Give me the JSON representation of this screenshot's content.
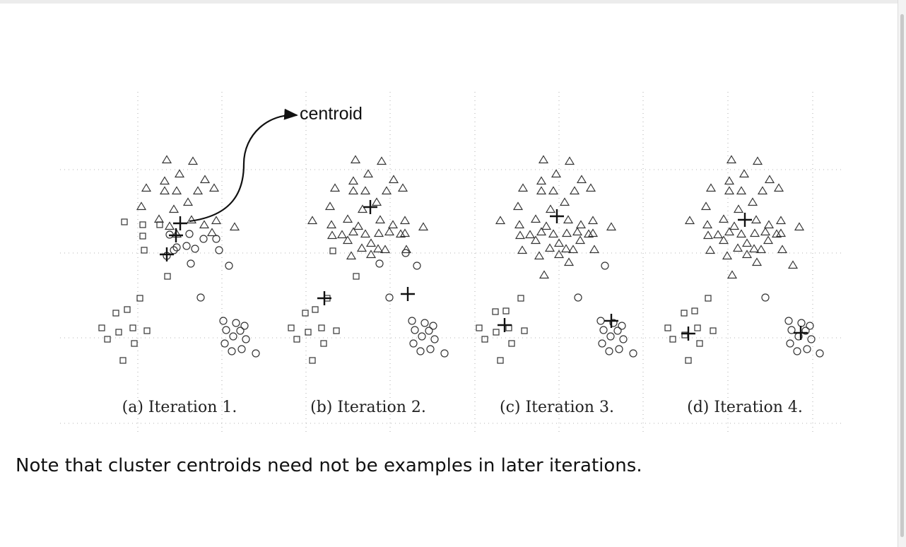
{
  "figure": {
    "callout_label": "centroid",
    "panels": [
      {
        "caption": "(a) Iteration 1.",
        "squares": [
          [
            176,
            314
          ],
          [
            202,
            318
          ],
          [
            226,
            318
          ],
          [
            202,
            334
          ],
          [
            204,
            354
          ],
          [
            237,
            391
          ],
          [
            198,
            422
          ],
          [
            180,
            438
          ],
          [
            164,
            443
          ],
          [
            144,
            464
          ],
          [
            188,
            464
          ],
          [
            208,
            468
          ],
          [
            168,
            470
          ],
          [
            152,
            480
          ],
          [
            190,
            486
          ],
          [
            174,
            510
          ]
        ],
        "triangles": [
          [
            236,
            226
          ],
          [
            273,
            228
          ],
          [
            254,
            246
          ],
          [
            233,
            256
          ],
          [
            290,
            254
          ],
          [
            207,
            266
          ],
          [
            233,
            270
          ],
          [
            250,
            270
          ],
          [
            280,
            270
          ],
          [
            303,
            266
          ],
          [
            266,
            286
          ],
          [
            200,
            292
          ],
          [
            246,
            296
          ],
          [
            225,
            310
          ],
          [
            271,
            311
          ],
          [
            306,
            312
          ],
          [
            240,
            320
          ],
          [
            289,
            318
          ],
          [
            332,
            321
          ],
          [
            250,
            331
          ],
          [
            300,
            329
          ]
        ],
        "circles": [
          [
            240,
            332
          ],
          [
            268,
            331
          ],
          [
            288,
            338
          ],
          [
            306,
            338
          ],
          [
            264,
            348
          ],
          [
            250,
            350
          ],
          [
            276,
            352
          ],
          [
            310,
            354
          ],
          [
            246,
            354
          ],
          [
            236,
            362
          ],
          [
            270,
            373
          ],
          [
            324,
            376
          ],
          [
            284,
            421
          ],
          [
            316,
            454
          ],
          [
            334,
            457
          ],
          [
            346,
            461
          ],
          [
            320,
            467
          ],
          [
            340,
            468
          ],
          [
            330,
            476
          ],
          [
            348,
            480
          ],
          [
            318,
            486
          ],
          [
            342,
            494
          ],
          [
            328,
            497
          ],
          [
            362,
            500
          ]
        ],
        "centroids": [
          [
            255,
            316
          ],
          [
            249,
            333
          ],
          [
            236,
            360
          ]
        ]
      },
      {
        "caption": "(b) Iteration 2.",
        "squares": [
          [
            471,
            355
          ],
          [
            504,
            391
          ],
          [
            463,
            422
          ],
          [
            446,
            438
          ],
          [
            432,
            443
          ],
          [
            412,
            464
          ],
          [
            455,
            464
          ],
          [
            476,
            468
          ],
          [
            436,
            470
          ],
          [
            420,
            480
          ],
          [
            458,
            486
          ],
          [
            442,
            510
          ]
        ],
        "triangles": [
          [
            503,
            226
          ],
          [
            540,
            228
          ],
          [
            521,
            246
          ],
          [
            500,
            256
          ],
          [
            557,
            254
          ],
          [
            474,
            266
          ],
          [
            500,
            270
          ],
          [
            517,
            270
          ],
          [
            547,
            270
          ],
          [
            570,
            266
          ],
          [
            533,
            286
          ],
          [
            467,
            292
          ],
          [
            513,
            296
          ],
          [
            442,
            312
          ],
          [
            492,
            310
          ],
          [
            538,
            311
          ],
          [
            573,
            312
          ],
          [
            507,
            320
          ],
          [
            556,
            318
          ],
          [
            599,
            321
          ],
          [
            469,
            318
          ],
          [
            517,
            331
          ],
          [
            567,
            331
          ],
          [
            484,
            332
          ],
          [
            500,
            328
          ],
          [
            536,
            330
          ],
          [
            551,
            328
          ],
          [
            573,
            330
          ],
          [
            470,
            333
          ],
          [
            492,
            340
          ],
          [
            525,
            344
          ],
          [
            512,
            351
          ],
          [
            535,
            352
          ],
          [
            545,
            353
          ],
          [
            575,
            353
          ],
          [
            525,
            360
          ],
          [
            497,
            362
          ]
        ],
        "circles": [
          [
            574,
            358
          ],
          [
            537,
            373
          ],
          [
            590,
            376
          ],
          [
            551,
            421
          ],
          [
            583,
            454
          ],
          [
            601,
            457
          ],
          [
            613,
            461
          ],
          [
            587,
            467
          ],
          [
            607,
            468
          ],
          [
            597,
            476
          ],
          [
            615,
            480
          ],
          [
            585,
            486
          ],
          [
            609,
            494
          ],
          [
            595,
            497
          ],
          [
            629,
            500
          ]
        ],
        "centroids": [
          [
            524,
            293
          ],
          [
            459,
            422
          ],
          [
            577,
            416
          ]
        ]
      },
      {
        "caption": "(c) Iteration 3.",
        "squares": [
          [
            737,
            422
          ],
          [
            716,
            440
          ],
          [
            701,
            441
          ],
          [
            678,
            464
          ],
          [
            720,
            464
          ],
          [
            742,
            468
          ],
          [
            702,
            470
          ],
          [
            686,
            480
          ],
          [
            724,
            486
          ],
          [
            708,
            510
          ]
        ],
        "triangles": [
          [
            769,
            226
          ],
          [
            806,
            228
          ],
          [
            787,
            246
          ],
          [
            766,
            256
          ],
          [
            823,
            254
          ],
          [
            740,
            266
          ],
          [
            766,
            270
          ],
          [
            783,
            270
          ],
          [
            813,
            270
          ],
          [
            836,
            266
          ],
          [
            799,
            286
          ],
          [
            733,
            292
          ],
          [
            779,
            296
          ],
          [
            708,
            312
          ],
          [
            758,
            310
          ],
          [
            804,
            311
          ],
          [
            839,
            312
          ],
          [
            773,
            320
          ],
          [
            822,
            318
          ],
          [
            865,
            321
          ],
          [
            735,
            318
          ],
          [
            783,
            331
          ],
          [
            833,
            331
          ],
          [
            750,
            332
          ],
          [
            766,
            328
          ],
          [
            802,
            330
          ],
          [
            817,
            328
          ],
          [
            839,
            330
          ],
          [
            736,
            333
          ],
          [
            758,
            340
          ],
          [
            791,
            344
          ],
          [
            778,
            351
          ],
          [
            801,
            352
          ],
          [
            811,
            353
          ],
          [
            841,
            353
          ],
          [
            791,
            360
          ],
          [
            763,
            362
          ],
          [
            805,
            371
          ],
          [
            770,
            389
          ],
          [
            739,
            354
          ],
          [
            821,
            340
          ]
        ],
        "circles": [
          [
            856,
            376
          ],
          [
            818,
            421
          ],
          [
            850,
            454
          ],
          [
            868,
            457
          ],
          [
            880,
            461
          ],
          [
            854,
            467
          ],
          [
            874,
            468
          ],
          [
            864,
            476
          ],
          [
            882,
            480
          ],
          [
            852,
            486
          ],
          [
            876,
            494
          ],
          [
            862,
            497
          ],
          [
            896,
            500
          ]
        ],
        "centroids": [
          [
            788,
            306
          ],
          [
            714,
            460
          ],
          [
            865,
            454
          ]
        ]
      },
      {
        "caption": "(d) Iteration 4.",
        "squares": [
          [
            1002,
            422
          ],
          [
            983,
            440
          ],
          [
            968,
            443
          ],
          [
            945,
            464
          ],
          [
            987,
            464
          ],
          [
            1009,
            468
          ],
          [
            969,
            474
          ],
          [
            952,
            480
          ],
          [
            990,
            486
          ],
          [
            974,
            510
          ]
        ],
        "triangles": [
          [
            1035,
            226
          ],
          [
            1072,
            228
          ],
          [
            1053,
            246
          ],
          [
            1032,
            256
          ],
          [
            1089,
            254
          ],
          [
            1006,
            266
          ],
          [
            1032,
            270
          ],
          [
            1049,
            270
          ],
          [
            1079,
            270
          ],
          [
            1102,
            266
          ],
          [
            1065,
            286
          ],
          [
            999,
            292
          ],
          [
            1045,
            296
          ],
          [
            976,
            312
          ],
          [
            1024,
            310
          ],
          [
            1070,
            311
          ],
          [
            1105,
            312
          ],
          [
            1039,
            320
          ],
          [
            1088,
            318
          ],
          [
            1131,
            321
          ],
          [
            1001,
            318
          ],
          [
            1049,
            331
          ],
          [
            1099,
            331
          ],
          [
            1016,
            332
          ],
          [
            1032,
            328
          ],
          [
            1068,
            330
          ],
          [
            1083,
            328
          ],
          [
            1105,
            330
          ],
          [
            1002,
            333
          ],
          [
            1024,
            340
          ],
          [
            1057,
            344
          ],
          [
            1044,
            351
          ],
          [
            1067,
            352
          ],
          [
            1077,
            353
          ],
          [
            1107,
            353
          ],
          [
            1057,
            360
          ],
          [
            1029,
            362
          ],
          [
            1071,
            371
          ],
          [
            1036,
            389
          ],
          [
            1005,
            354
          ],
          [
            1087,
            340
          ],
          [
            1122,
            375
          ]
        ],
        "circles": [
          [
            1083,
            421
          ],
          [
            1116,
            454
          ],
          [
            1134,
            457
          ],
          [
            1146,
            461
          ],
          [
            1120,
            467
          ],
          [
            1140,
            468
          ],
          [
            1130,
            476
          ],
          [
            1148,
            480
          ],
          [
            1118,
            486
          ],
          [
            1142,
            494
          ],
          [
            1128,
            497
          ],
          [
            1160,
            500
          ]
        ],
        "centroids": [
          [
            1054,
            311
          ],
          [
            974,
            472
          ],
          [
            1133,
            471
          ]
        ]
      }
    ]
  },
  "note": "Note that cluster centroids need not be examples in later iterations."
}
